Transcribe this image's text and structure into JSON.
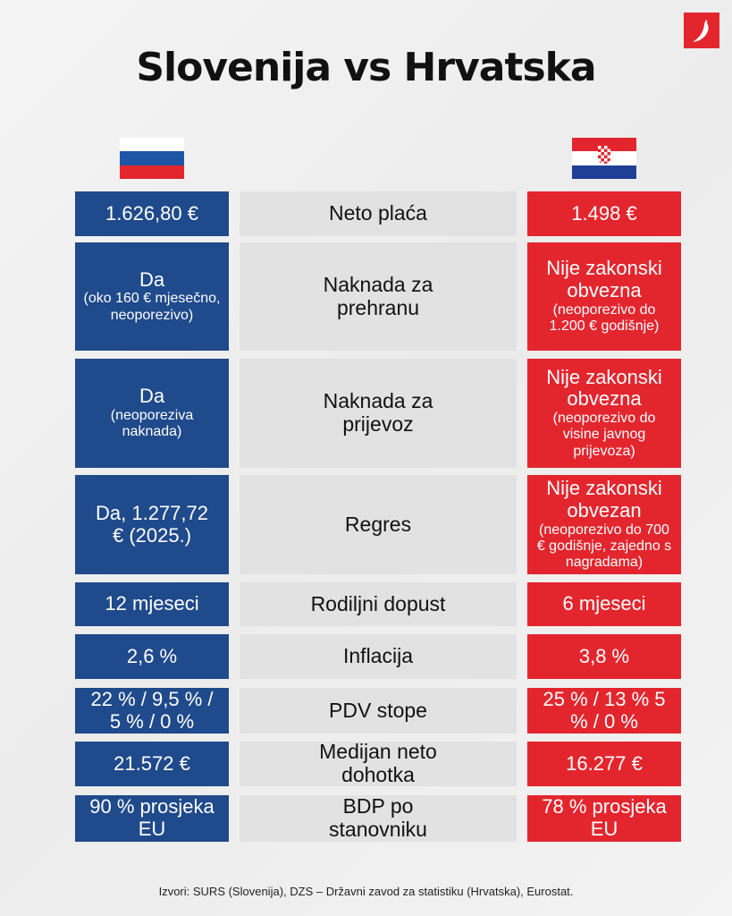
{
  "title": "Slovenija vs Hrvatska",
  "logo": "chili-pepper-logo",
  "colors": {
    "slovenia": "#1f4a8b",
    "croatia": "#e3262e",
    "label": "#e2e2e2"
  },
  "rows": [
    {
      "label": "Neto plaća",
      "si": "1.626,80 €",
      "si_sub": "",
      "hr": "1.498 €",
      "hr_sub": ""
    },
    {
      "label": "Naknada za prehranu",
      "si": "Da",
      "si_sub": "(oko 160 € mjesečno, neoporezivo)",
      "hr": "Nije zakonski obvezna",
      "hr_sub": "(neoporezivo do 1.200 € godišnje)"
    },
    {
      "label": "Naknada za prijevoz",
      "si": "Da",
      "si_sub": "(neoporeziva naknada)",
      "hr": "Nije zakonski obvezna",
      "hr_sub": "(neoporezivo do visine javnog prijevoza)"
    },
    {
      "label": "Regres",
      "si": "Da, 1.277,72 € (2025.)",
      "si_sub": "",
      "hr": "Nije zakonski obvezan",
      "hr_sub": "(neoporezivo do 700 € godišnje, zajedno s nagradama)"
    },
    {
      "label": "Rodiljni dopust",
      "si": "12 mjeseci",
      "si_sub": "",
      "hr": "6 mjeseci",
      "hr_sub": ""
    },
    {
      "label": "Inflacija",
      "si": "2,6 %",
      "si_sub": "",
      "hr": "3,8 %",
      "hr_sub": ""
    },
    {
      "label": "PDV stope",
      "si": "22 % / 9,5 % / 5 % / 0 %",
      "si_sub": "",
      "hr": "25 % / 13 % 5 % / 0 %",
      "hr_sub": ""
    },
    {
      "label": "Medijan neto dohotka",
      "si": "21.572 €",
      "si_sub": "",
      "hr": "16.277 €",
      "hr_sub": ""
    },
    {
      "label": "BDP po stanovniku",
      "si": "90 % prosjeka EU",
      "si_sub": "",
      "hr": "78 % prosjeka EU",
      "hr_sub": ""
    }
  ],
  "sources": "Izvori: SURS (Slovenija), DZS – Državni zavod za statistiku (Hrvatska), Eurostat."
}
